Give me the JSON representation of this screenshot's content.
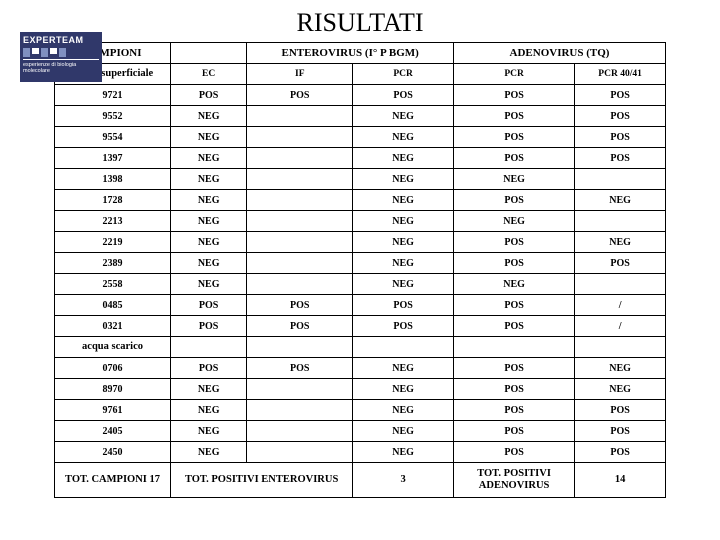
{
  "title": "RISULTATI",
  "logo": {
    "brand": "EXPERTEAM",
    "sub": "esperienze di biologia molecolare"
  },
  "headers": {
    "campioni": "CAMPIONI",
    "entero": "ENTEROVIRUS (I° P BGM)",
    "adeno": "ADENOVIRUS (TQ)",
    "acqua_sup": "acqua superficiale",
    "ec": "EC",
    "if": "IF",
    "pcr": "PCR",
    "pcr2": "PCR",
    "pcr4041": "PCR 40/41",
    "acqua_scarico": "acqua scarico"
  },
  "rows_sup": [
    {
      "id": "9721",
      "ec": "POS",
      "if": "POS",
      "pcr": "POS",
      "apcr": "POS",
      "a4041": "POS"
    },
    {
      "id": "9552",
      "ec": "NEG",
      "if": "",
      "pcr": "NEG",
      "apcr": "POS",
      "a4041": "POS"
    },
    {
      "id": "9554",
      "ec": "NEG",
      "if": "",
      "pcr": "NEG",
      "apcr": "POS",
      "a4041": "POS"
    },
    {
      "id": "1397",
      "ec": "NEG",
      "if": "",
      "pcr": "NEG",
      "apcr": "POS",
      "a4041": "POS"
    },
    {
      "id": "1398",
      "ec": "NEG",
      "if": "",
      "pcr": "NEG",
      "apcr": "NEG",
      "a4041": ""
    },
    {
      "id": "1728",
      "ec": "NEG",
      "if": "",
      "pcr": "NEG",
      "apcr": "POS",
      "a4041": "NEG"
    },
    {
      "id": "2213",
      "ec": "NEG",
      "if": "",
      "pcr": "NEG",
      "apcr": "NEG",
      "a4041": ""
    },
    {
      "id": "2219",
      "ec": "NEG",
      "if": "",
      "pcr": "NEG",
      "apcr": "POS",
      "a4041": "NEG"
    },
    {
      "id": "2389",
      "ec": "NEG",
      "if": "",
      "pcr": "NEG",
      "apcr": "POS",
      "a4041": "POS"
    },
    {
      "id": "2558",
      "ec": "NEG",
      "if": "",
      "pcr": "NEG",
      "apcr": "NEG",
      "a4041": ""
    },
    {
      "id": "0485",
      "ec": "POS",
      "if": "POS",
      "pcr": "POS",
      "apcr": "POS",
      "a4041": "/"
    },
    {
      "id": "0321",
      "ec": "POS",
      "if": "POS",
      "pcr": "POS",
      "apcr": "POS",
      "a4041": "/"
    }
  ],
  "rows_scarico": [
    {
      "id": "0706",
      "ec": "POS",
      "if": "POS",
      "pcr": "NEG",
      "apcr": "POS",
      "a4041": "NEG"
    },
    {
      "id": "8970",
      "ec": "NEG",
      "if": "",
      "pcr": "NEG",
      "apcr": "POS",
      "a4041": "NEG"
    },
    {
      "id": "9761",
      "ec": "NEG",
      "if": "",
      "pcr": "NEG",
      "apcr": "POS",
      "a4041": "POS"
    },
    {
      "id": "2405",
      "ec": "NEG",
      "if": "",
      "pcr": "NEG",
      "apcr": "POS",
      "a4041": "POS"
    },
    {
      "id": "2450",
      "ec": "NEG",
      "if": "",
      "pcr": "NEG",
      "apcr": "POS",
      "a4041": "POS"
    }
  ],
  "totals": {
    "tot_campioni_label": "TOT. CAMPIONI 17",
    "tot_entero_label": "TOT. POSITIVI ENTEROVIRUS",
    "tot_entero_val": "3",
    "tot_adeno_label": "TOT. POSITIVI ADENOVIRUS",
    "tot_adeno_val": "14"
  }
}
